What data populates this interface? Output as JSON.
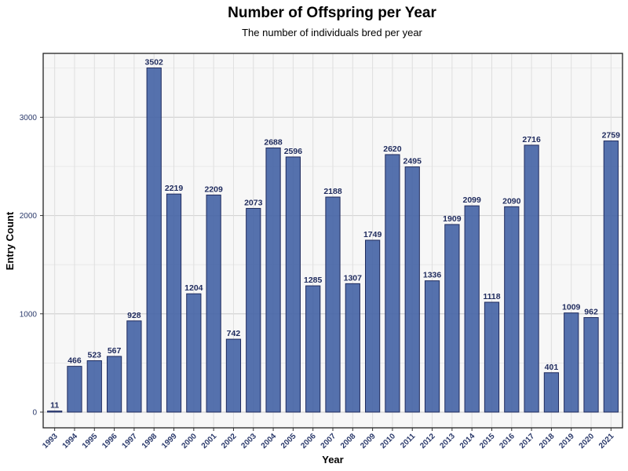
{
  "chart_data": {
    "type": "bar",
    "title": "Number of Offspring per Year",
    "subtitle": "The number of individuals bred per year",
    "xlabel": "Year",
    "ylabel": "Entry Count",
    "ylim": [
      -160,
      3650
    ],
    "yticks": [
      0,
      1000,
      2000,
      3000
    ],
    "grid": true,
    "legend": "none",
    "bar_color": "#3f5fa3",
    "bar_edge_color": "#1f2b5e",
    "label_color": "#1f2b5e",
    "panel_background": "#f7f7f7",
    "categories": [
      "1993",
      "1994",
      "1995",
      "1996",
      "1997",
      "1998",
      "1999",
      "2000",
      "2001",
      "2002",
      "2003",
      "2004",
      "2005",
      "2006",
      "2007",
      "2008",
      "2009",
      "2010",
      "2011",
      "2012",
      "2013",
      "2014",
      "2015",
      "2016",
      "2017",
      "2018",
      "2019",
      "2020",
      "2021"
    ],
    "values": [
      11,
      466,
      523,
      567,
      928,
      3502,
      2219,
      1204,
      2209,
      742,
      2073,
      2688,
      2596,
      1285,
      2188,
      1307,
      1749,
      2620,
      2495,
      1336,
      1909,
      2099,
      1118,
      2090,
      2716,
      401,
      1009,
      962,
      2759
    ]
  }
}
